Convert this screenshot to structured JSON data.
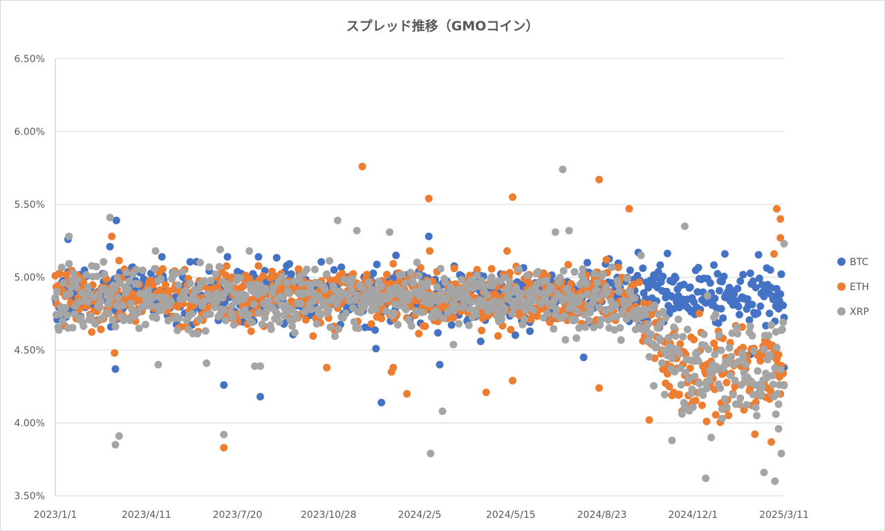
{
  "chart_data": {
    "type": "scatter",
    "title": "スプレッド推移（GMOコイン）",
    "xlabel": "",
    "ylabel": "",
    "xlim": [
      "2023/1/1",
      "2025/3/11"
    ],
    "ylim": [
      0.035,
      0.065
    ],
    "x_tick_labels": [
      "2023/1/1",
      "2023/4/11",
      "2023/7/20",
      "2023/10/28",
      "2024/2/5",
      "2024/5/15",
      "2024/8/23",
      "2024/12/1",
      "2025/3/11"
    ],
    "y_tick_labels": [
      "3.50%",
      "4.00%",
      "4.50%",
      "5.00%",
      "5.50%",
      "6.00%",
      "6.50%"
    ],
    "y_ticks": [
      0.035,
      0.04,
      0.045,
      0.05,
      0.055,
      0.06,
      0.065
    ],
    "grid": true,
    "legend_position": "right",
    "series": [
      {
        "name": "BTC",
        "color": "#4472c4",
        "points": [
          [
            "2023/1/15",
            0.0526
          ],
          [
            "2023/3/2",
            0.0521
          ],
          [
            "2023/3/9",
            0.0539
          ],
          [
            "2023/3/8",
            0.0437
          ],
          [
            "2023/4/28",
            0.0514
          ],
          [
            "2023/7/5",
            0.0426
          ],
          [
            "2023/7/9",
            0.0514
          ],
          [
            "2023/8/14",
            0.0418
          ],
          [
            "2023/8/12",
            0.0514
          ],
          [
            "2023/12/19",
            0.0451
          ],
          [
            "2023/12/25",
            0.0414
          ],
          [
            "2024/1/10",
            0.0515
          ],
          [
            "2024/2/15",
            0.0528
          ],
          [
            "2024/2/27",
            0.044
          ],
          [
            "2024/4/12",
            0.0456
          ],
          [
            "2024/6/5",
            0.0463
          ],
          [
            "2024/8/7",
            0.051
          ],
          [
            "2024/8/3",
            0.0445
          ],
          [
            "2024/10/2",
            0.0517
          ],
          [
            "2024/11/5",
            0.0475
          ],
          [
            "2025/1/5",
            0.0516
          ],
          [
            "2025/2/2",
            0.0447
          ],
          [
            "2025/3/11",
            0.0438
          ],
          [
            "2025/3/8",
            0.0502
          ]
        ],
        "band": {
          "from": "2023/1/1",
          "to": "2025/3/11",
          "center": 0.0487,
          "spread": 0.0012
        }
      },
      {
        "name": "ETH",
        "color": "#ed7d31",
        "points": [
          [
            "2023/3/4",
            0.0528
          ],
          [
            "2023/3/7",
            0.0448
          ],
          [
            "2023/7/5",
            0.0383
          ],
          [
            "2023/10/26",
            0.0438
          ],
          [
            "2023/12/4",
            0.0576
          ],
          [
            "2024/1/7",
            0.0438
          ],
          [
            "2024/1/5",
            0.0435
          ],
          [
            "2024/1/22",
            0.042
          ],
          [
            "2024/2/15",
            0.0554
          ],
          [
            "2024/2/16",
            0.0518
          ],
          [
            "2024/4/18",
            0.0421
          ],
          [
            "2024/5/17",
            0.0555
          ],
          [
            "2024/5/17",
            0.0429
          ],
          [
            "2024/5/11",
            0.0518
          ],
          [
            "2024/8/20",
            0.0567
          ],
          [
            "2024/8/20",
            0.0424
          ],
          [
            "2024/9/22",
            0.0547
          ],
          [
            "2024/10/14",
            0.0402
          ],
          [
            "2024/12/16",
            0.0401
          ],
          [
            "2025/1/7",
            0.041
          ],
          [
            "2025/3/3",
            0.0547
          ],
          [
            "2025/3/7",
            0.054
          ],
          [
            "2025/2/28",
            0.0516
          ],
          [
            "2025/3/7",
            0.0527
          ]
        ],
        "band": {
          "from": "2023/1/1",
          "to": "2025/3/11",
          "center": 0.0486,
          "spread": 0.0012,
          "low_after": "2024/9/20",
          "low_center": 0.0438,
          "low_spread": 0.0022
        }
      },
      {
        "name": "XRP",
        "color": "#a5a5a5",
        "points": [
          [
            "2023/1/16",
            0.0528
          ],
          [
            "2023/3/2",
            0.0541
          ],
          [
            "2023/3/8",
            0.0385
          ],
          [
            "2023/3/12",
            0.0391
          ],
          [
            "2023/4/21",
            0.0518
          ],
          [
            "2023/4/24",
            0.044
          ],
          [
            "2023/6/16",
            0.0441
          ],
          [
            "2023/7/1",
            0.0519
          ],
          [
            "2023/7/5",
            0.0392
          ],
          [
            "2023/8/2",
            0.0518
          ],
          [
            "2023/8/8",
            0.0439
          ],
          [
            "2023/8/14",
            0.0439
          ],
          [
            "2023/11/7",
            0.0539
          ],
          [
            "2023/11/28",
            0.0532
          ],
          [
            "2024/1/3",
            0.0531
          ],
          [
            "2024/2/17",
            0.0379
          ],
          [
            "2024/3/1",
            0.0408
          ],
          [
            "2024/7/3",
            0.0531
          ],
          [
            "2024/7/11",
            0.0574
          ],
          [
            "2024/7/18",
            0.0532
          ],
          [
            "2024/10/5",
            0.0515
          ],
          [
            "2024/11/22",
            0.0535
          ],
          [
            "2024/11/8",
            0.0388
          ],
          [
            "2024/12/15",
            0.0362
          ],
          [
            "2024/12/21",
            0.039
          ],
          [
            "2025/1/2",
            0.0403
          ],
          [
            "2025/2/17",
            0.0366
          ],
          [
            "2025/3/1",
            0.036
          ],
          [
            "2025/3/8",
            0.0379
          ],
          [
            "2025/3/11",
            0.0523
          ],
          [
            "2025/3/5",
            0.0396
          ],
          [
            "2025/3/2",
            0.0406
          ]
        ],
        "band": {
          "from": "2023/1/1",
          "to": "2025/3/11",
          "center": 0.0485,
          "spread": 0.0014,
          "low_after": "2024/9/20",
          "low_center": 0.0438,
          "low_spread": 0.0022
        }
      }
    ]
  }
}
